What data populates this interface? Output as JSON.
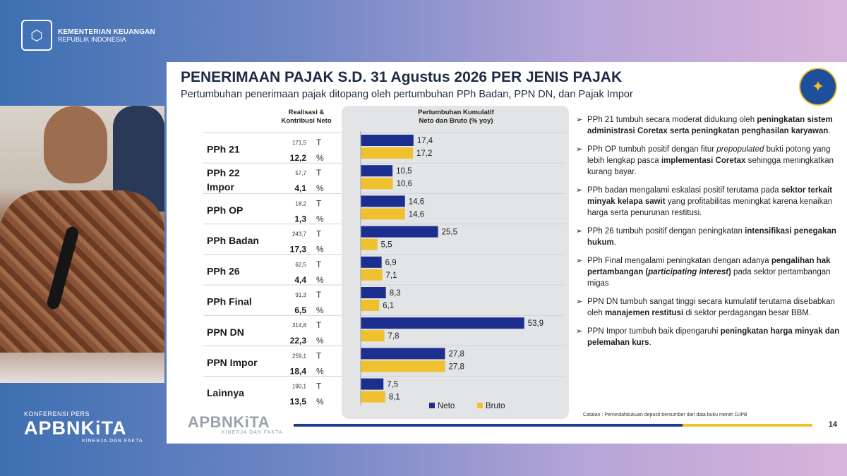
{
  "header": {
    "org_line1": "KEMENTERIAN KEUANGAN",
    "org_line2": "REPUBLIK INDONESIA"
  },
  "conference": {
    "kicker": "KONFERENSI PERS",
    "brand": "APBNKiTA",
    "tagline": "KINERJA DAN FAKTA"
  },
  "slide": {
    "title": "PENERIMAAN PAJAK S.D. 31 Agustus 2026 PER JENIS PAJAK",
    "subtitle": "Pertumbuhan penerimaan pajak ditopang oleh pertumbuhan PPh Badan, PPN DN, dan Pajak Impor",
    "col1_head_l1": "Realisasi &",
    "col1_head_l2": "Kontribusi Neto",
    "col2_head_l1": "Pertumbuhan Kumulatif",
    "col2_head_l2": "Neto dan Bruto (% yoy)",
    "footnote": "Catatan : Pemindahbukuan deposit bersumber dari data buku merah DJPB",
    "page_number": "14",
    "footer_brand": "APBNKiTA",
    "footer_tagline": "KINERJA DAN FAKTA",
    "notes": [
      {
        "plain1": "PPh 21 tumbuh secara moderat didukung oleh ",
        "bold1": "peningkatan sistem administrasi Coretax serta peningkatan penghasilan karyawan",
        "plain2": "."
      },
      {
        "plain1": "PPh OP tumbuh positif dengan fitur ",
        "italic1": "prepopulated",
        "plain2": " bukti potong yang lebih lengkap pasca ",
        "bold1": "implementasi Coretax",
        "plain3": " sehingga meningkatkan kurang bayar."
      },
      {
        "plain1": "PPh badan mengalami eskalasi positif terutama pada ",
        "bold1": "sektor terkait minyak kelapa sawit",
        "plain2": " yang profitabilitas meningkat karena kenaikan harga serta penurunan restitusi."
      },
      {
        "plain1": "PPh 26 tumbuh positif dengan peningkatan ",
        "bold1": "intensifikasi penegakan hukum",
        "plain2": "."
      },
      {
        "plain1": "PPh Final mengalami peningkatan dengan adanya ",
        "bold1": "pengalihan hak pertambangan (",
        "bolditalic1": "participating interest",
        "bold2": ")",
        "plain2": " pada sektor pertambangan migas"
      },
      {
        "plain1": "PPN DN tumbuh sangat tinggi  secara kumulatif terutama disebabkan oleh ",
        "bold1": "manajemen restitusi",
        "plain2": " di sektor perdagangan besar BBM."
      },
      {
        "plain1": "PPN Impor tumbuh baik dipengaruhi ",
        "bold1": "peningkatan harga minyak dan pelemahan kurs",
        "plain2": "."
      }
    ]
  },
  "chart_data": {
    "type": "bar",
    "orientation": "horizontal",
    "categories": [
      "PPh 21",
      "PPh 22 Impor",
      "PPh OP",
      "PPh Badan",
      "PPh 26",
      "PPh Final",
      "PPN DN",
      "PPN Impor",
      "Lainnya"
    ],
    "category_lines": [
      [
        "PPh 21"
      ],
      [
        "PPh 22",
        "Impor"
      ],
      [
        "PPh OP"
      ],
      [
        "PPh Badan"
      ],
      [
        "PPh 26"
      ],
      [
        "PPh Final"
      ],
      [
        "PPN DN"
      ],
      [
        "PPN Impor"
      ],
      [
        "Lainnya"
      ]
    ],
    "realisasi_T": [
      "171,5",
      "57,7",
      "18,2",
      "243,7",
      "62,5",
      "91,3",
      "314,8",
      "259,1",
      "190,1"
    ],
    "kontribusi_pct": [
      "12,2",
      "4,1",
      "1,3",
      "17,3",
      "4,4",
      "6,5",
      "22,3",
      "18,4",
      "13,5"
    ],
    "unit_T": "T",
    "unit_pct": "%",
    "series": [
      {
        "name": "Neto",
        "color": "#1d2f8e",
        "values": [
          17.4,
          10.5,
          14.6,
          25.5,
          6.9,
          8.3,
          53.9,
          27.8,
          7.5
        ],
        "labels": [
          "17,4",
          "10,5",
          "14,6",
          "25,5",
          "6,9",
          "8,3",
          "53,9",
          "27,8",
          "7,5"
        ]
      },
      {
        "name": "Bruto",
        "color": "#f0c12e",
        "values": [
          17.2,
          10.6,
          14.6,
          5.5,
          7.1,
          6.1,
          7.8,
          27.8,
          8.1
        ],
        "labels": [
          "17,2",
          "10,6",
          "14,6",
          "5,5",
          "7,1",
          "6,1",
          "7,8",
          "27,8",
          "8,1"
        ]
      }
    ],
    "xlim": [
      0,
      60
    ],
    "legend": "bottom",
    "grid": false
  }
}
